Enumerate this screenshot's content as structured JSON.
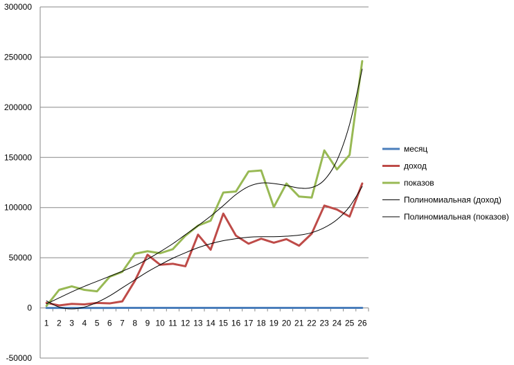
{
  "chart_data": {
    "type": "line",
    "title": "",
    "xlabel": "",
    "ylabel": "",
    "x": [
      1,
      2,
      3,
      4,
      5,
      6,
      7,
      8,
      9,
      10,
      11,
      12,
      13,
      14,
      15,
      16,
      17,
      18,
      19,
      20,
      21,
      22,
      23,
      24,
      25,
      26
    ],
    "ylim": [
      -50000,
      300000
    ],
    "yticks": [
      -50000,
      0,
      50000,
      100000,
      150000,
      200000,
      250000,
      300000
    ],
    "grid": true,
    "legend_position": "right",
    "series": [
      {
        "name": "месяц",
        "kind": "data",
        "color": "#4a7ebb",
        "values": [
          1,
          2,
          3,
          4,
          5,
          6,
          7,
          8,
          9,
          10,
          11,
          12,
          13,
          14,
          15,
          16,
          17,
          18,
          19,
          20,
          21,
          22,
          23,
          24,
          25,
          26
        ]
      },
      {
        "name": "доход",
        "kind": "data",
        "color": "#be4b48",
        "values": [
          5000,
          2500,
          4000,
          3500,
          5000,
          4500,
          6500,
          27000,
          53000,
          43000,
          44000,
          41500,
          73000,
          58000,
          94000,
          72000,
          64000,
          69000,
          65000,
          68500,
          62000,
          74000,
          102000,
          98000,
          91000,
          124000
        ]
      },
      {
        "name": "показов",
        "kind": "data",
        "color": "#98b954",
        "values": [
          2000,
          18000,
          21500,
          18000,
          16500,
          31000,
          36000,
          54000,
          56500,
          54500,
          58500,
          72000,
          82000,
          87000,
          115000,
          116000,
          136000,
          137000,
          100500,
          124000,
          111000,
          110000,
          157000,
          138000,
          152500,
          246000
        ]
      },
      {
        "name": "Полиномиальная (доход)",
        "kind": "trend",
        "color": "#000000",
        "values": [
          7000,
          800,
          -1000,
          800,
          5500,
          12000,
          20000,
          28000,
          36000,
          43000,
          49500,
          55000,
          60000,
          64000,
          67000,
          69000,
          70500,
          71000,
          71000,
          71500,
          72500,
          75000,
          80000,
          88000,
          101000,
          121000
        ]
      },
      {
        "name": "Полиномиальная (показов)",
        "kind": "trend",
        "color": "#000000",
        "values": [
          4000,
          10000,
          16000,
          21500,
          26500,
          31500,
          36500,
          42000,
          48500,
          56000,
          64000,
          73000,
          82000,
          91500,
          102000,
          113000,
          121000,
          124500,
          124000,
          122000,
          119500,
          120000,
          127500,
          147000,
          183000,
          238000
        ]
      }
    ]
  }
}
